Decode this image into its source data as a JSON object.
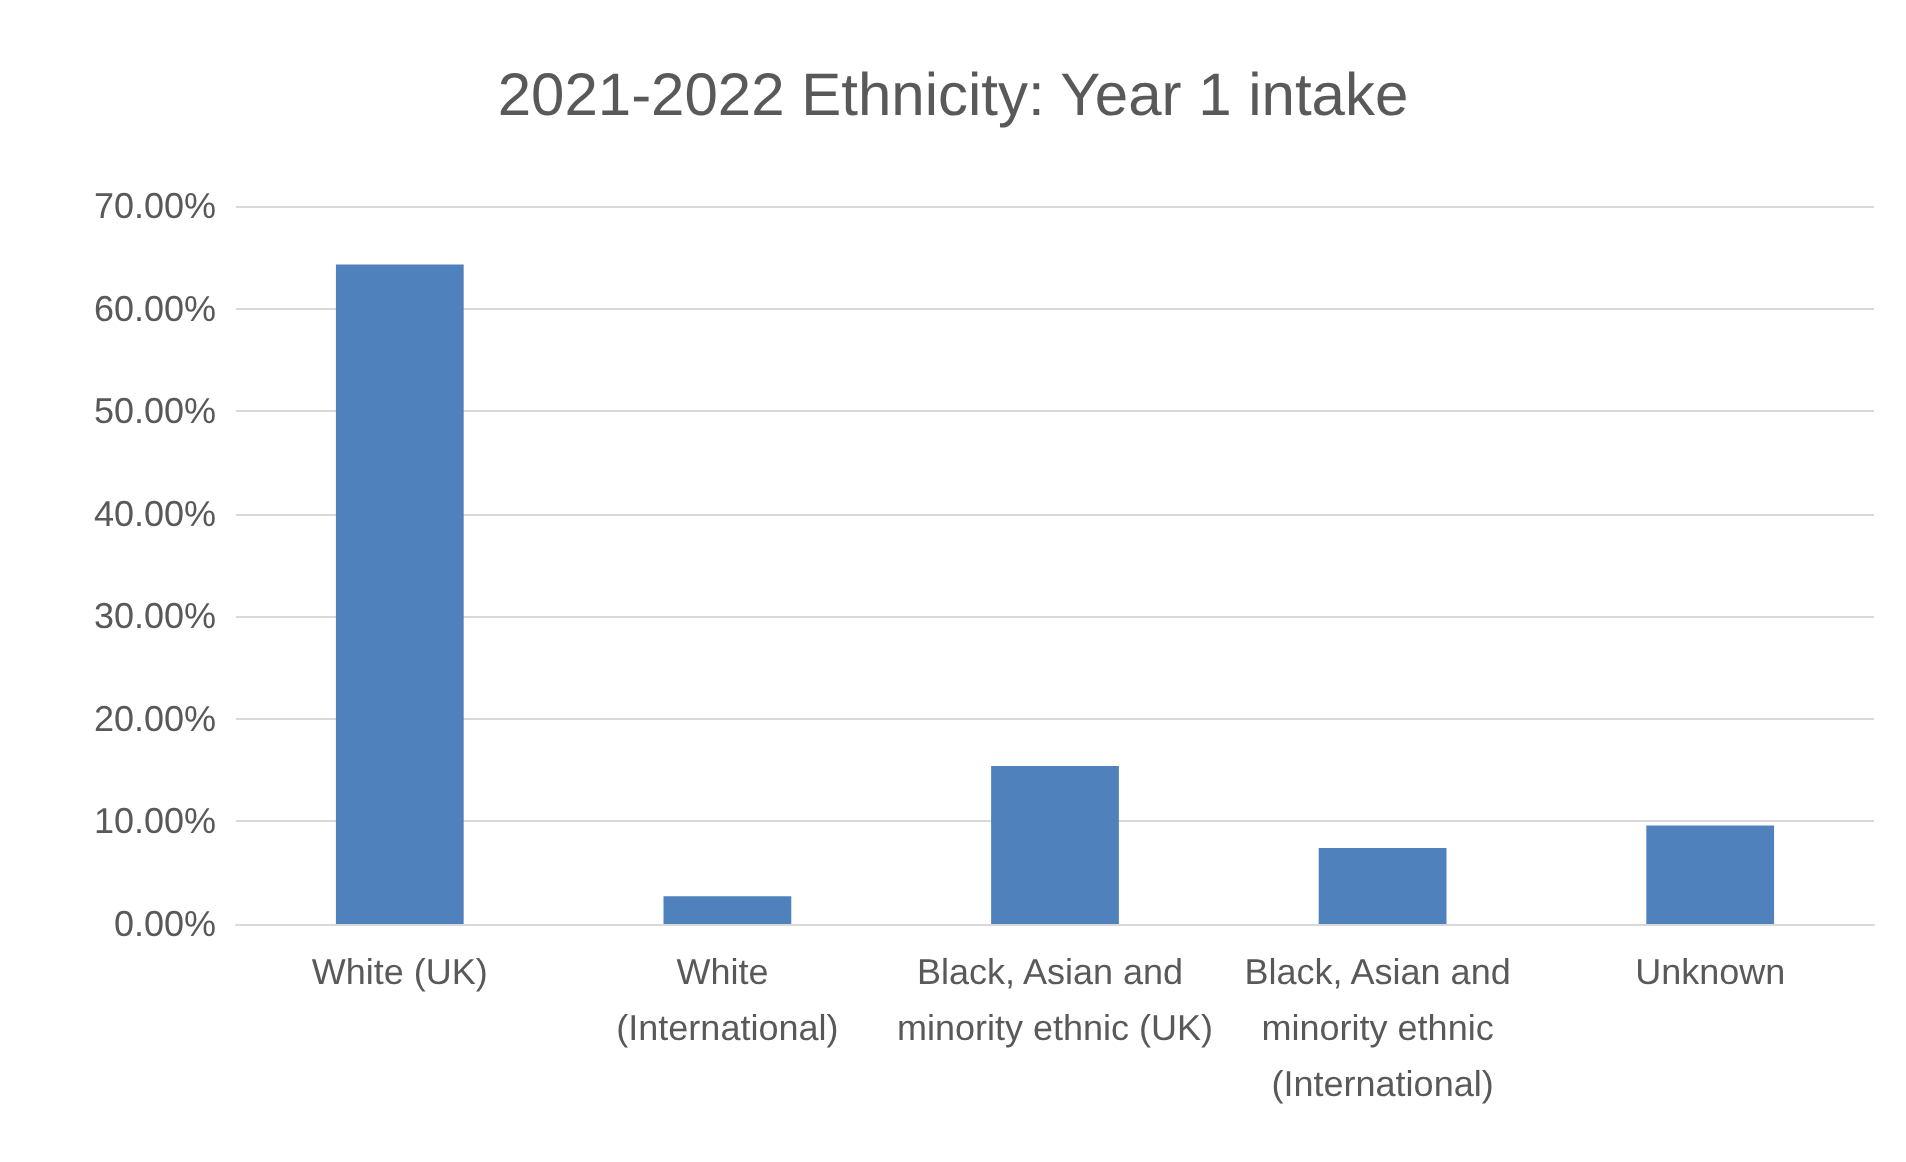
{
  "chart_data": {
    "type": "bar",
    "title": "2021-2022 Ethnicity: Year 1 intake",
    "categories": [
      "White (UK)",
      "White (International)",
      "Black, Asian and minority ethnic (UK)",
      "Black, Asian and minority ethnic (International)",
      "Unknown"
    ],
    "values": [
      64.3,
      2.7,
      15.4,
      7.4,
      9.6
    ],
    "color": "#4f81bd",
    "ylim": [
      0,
      70
    ],
    "yticks": [
      {
        "value": 0,
        "label": "0.00%"
      },
      {
        "value": 10,
        "label": "10.00%"
      },
      {
        "value": 20,
        "label": "20.00%"
      },
      {
        "value": 30,
        "label": "30.00%"
      },
      {
        "value": 40,
        "label": "40.00%"
      },
      {
        "value": 50,
        "label": "50.00%"
      },
      {
        "value": 60,
        "label": "60.00%"
      },
      {
        "value": 70,
        "label": "70.00%"
      }
    ],
    "grid": "y"
  }
}
